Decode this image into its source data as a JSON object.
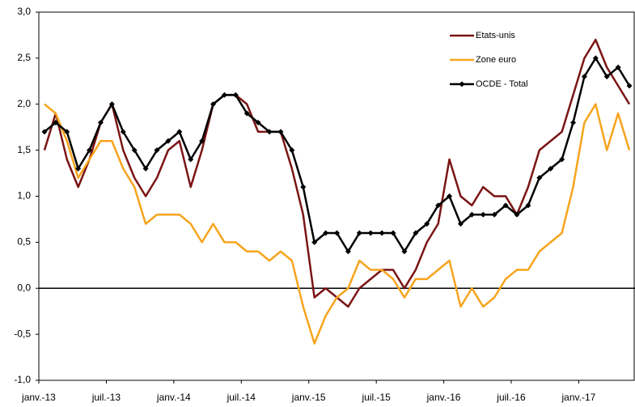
{
  "chart_data": {
    "type": "line",
    "categories": [
      "janv.-13",
      null,
      null,
      null,
      null,
      null,
      "juil.-13",
      null,
      null,
      null,
      null,
      null,
      "janv.-14",
      null,
      null,
      null,
      null,
      null,
      "juil.-14",
      null,
      null,
      null,
      null,
      null,
      "janv.-15",
      null,
      null,
      null,
      null,
      null,
      "juil.-15",
      null,
      null,
      null,
      null,
      null,
      "janv.-16",
      null,
      null,
      null,
      null,
      null,
      "juil.-16",
      null,
      null,
      null,
      null,
      null,
      "janv.-17",
      null,
      null,
      null,
      null
    ],
    "series": [
      {
        "name": "Etats-unis",
        "color": "#7b1414",
        "marker": false,
        "values": [
          1.5,
          1.9,
          1.4,
          1.1,
          1.4,
          1.8,
          2.0,
          1.5,
          1.2,
          1.0,
          1.2,
          1.5,
          1.6,
          1.1,
          1.5,
          2.0,
          2.1,
          2.1,
          2.0,
          1.7,
          1.7,
          1.7,
          1.3,
          0.8,
          -0.1,
          0.0,
          -0.1,
          -0.2,
          0.0,
          0.1,
          0.2,
          0.2,
          0.0,
          0.2,
          0.5,
          0.7,
          1.4,
          1.0,
          0.9,
          1.1,
          1.0,
          1.0,
          0.8,
          1.1,
          1.5,
          1.6,
          1.7,
          2.1,
          2.5,
          2.7,
          2.4,
          2.2,
          2.0
        ]
      },
      {
        "name": "Zone euro",
        "color": "#f7a41d",
        "marker": false,
        "values": [
          2.0,
          1.9,
          1.6,
          1.2,
          1.4,
          1.6,
          1.6,
          1.3,
          1.1,
          0.7,
          0.8,
          0.8,
          0.8,
          0.7,
          0.5,
          0.7,
          0.5,
          0.5,
          0.4,
          0.4,
          0.3,
          0.4,
          0.3,
          -0.2,
          -0.6,
          -0.3,
          -0.1,
          0.0,
          0.3,
          0.2,
          0.2,
          0.1,
          -0.1,
          0.1,
          0.1,
          0.2,
          0.3,
          -0.2,
          0.0,
          -0.2,
          -0.1,
          0.1,
          0.2,
          0.2,
          0.4,
          0.5,
          0.6,
          1.1,
          1.8,
          2.0,
          1.5,
          1.9,
          1.5
        ]
      },
      {
        "name": "OCDE - Total",
        "color": "#000000",
        "marker": true,
        "values": [
          1.7,
          1.8,
          1.7,
          1.3,
          1.5,
          1.8,
          2.0,
          1.7,
          1.5,
          1.3,
          1.5,
          1.6,
          1.7,
          1.4,
          1.6,
          2.0,
          2.1,
          2.1,
          1.9,
          1.8,
          1.7,
          1.7,
          1.5,
          1.1,
          0.5,
          0.6,
          0.6,
          0.4,
          0.6,
          0.6,
          0.6,
          0.6,
          0.4,
          0.6,
          0.7,
          0.9,
          1.0,
          0.7,
          0.8,
          0.8,
          0.8,
          0.9,
          0.8,
          0.9,
          1.2,
          1.3,
          1.4,
          1.8,
          2.3,
          2.5,
          2.3,
          2.4,
          2.2
        ]
      }
    ],
    "ylim": [
      -1,
      3
    ],
    "yticks": [
      {
        "value": -1,
        "label": "-1,0"
      },
      {
        "value": -0.5,
        "label": "-0,5"
      },
      {
        "value": 0,
        "label": "0,0"
      },
      {
        "value": 0.5,
        "label": "0,5"
      },
      {
        "value": 1,
        "label": "1,0"
      },
      {
        "value": 1.5,
        "label": "1,5"
      },
      {
        "value": 2,
        "label": "2,0"
      },
      {
        "value": 2.5,
        "label": "2,5"
      },
      {
        "value": 3,
        "label": "3,0"
      }
    ],
    "legend": "upper right"
  }
}
